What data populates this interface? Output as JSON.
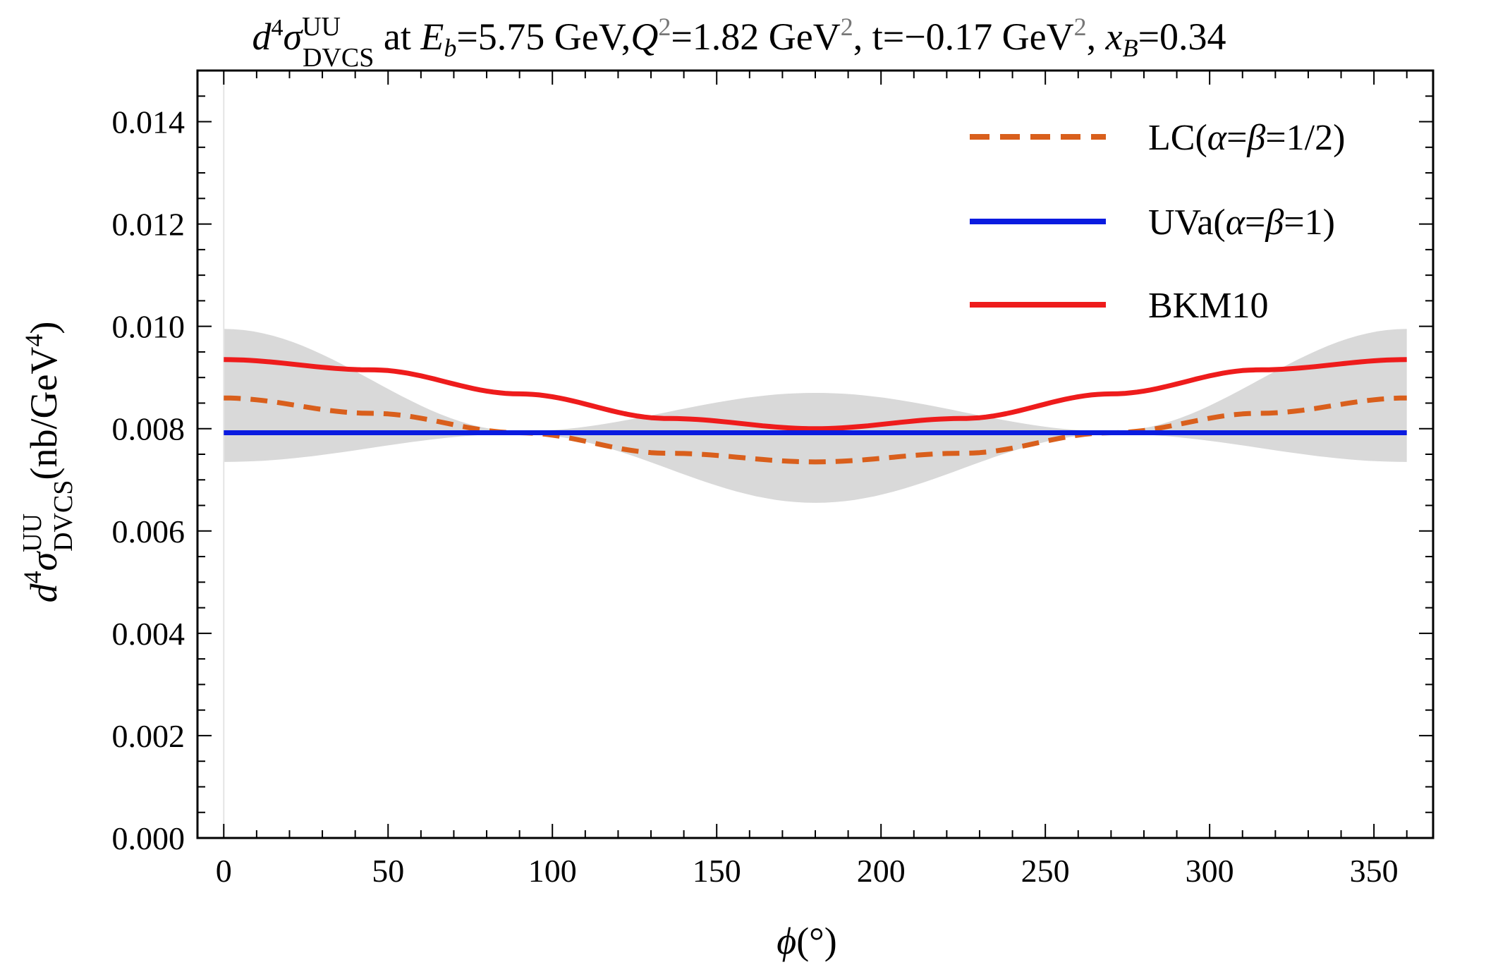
{
  "chart_data": {
    "type": "line",
    "title": {
      "sym": "d",
      "sup1": "4",
      "sigma": "σ",
      "uu": "UU",
      "dvcs": "DVCS",
      "at": " at ",
      "E": "E",
      "b": "b",
      "eb_val": "=5.75 GeV,",
      "Q": "Q",
      "two_a": "2",
      "q2_val": "=1.82 GeV",
      "two_b": "2",
      "t_val": ", t=−0.17 GeV",
      "two_c": "2",
      "comma": ", ",
      "x": "x",
      "B": "B",
      "xb_val": "=0.34"
    },
    "xlabel": {
      "phi": "ϕ",
      "unit": "(°)"
    },
    "ylabel": {
      "d": "d",
      "sup4": "4",
      "sigma": "σ",
      "uu": "UU",
      "dvcs": "DVCS",
      "unit_a": "(nb/GeV",
      "unit_sup": "4",
      "unit_b": ")"
    },
    "xlim": [
      -8,
      368
    ],
    "ylim": [
      0,
      0.015
    ],
    "xticks": [
      0,
      50,
      100,
      150,
      200,
      250,
      300,
      350
    ],
    "xtick_labels": [
      "0",
      "50",
      "100",
      "150",
      "200",
      "250",
      "300",
      "350"
    ],
    "yticks": [
      0,
      0.002,
      0.004,
      0.006,
      0.008,
      0.01,
      0.012,
      0.014
    ],
    "ytick_labels": [
      "0.000",
      "0.002",
      "0.004",
      "0.006",
      "0.008",
      "0.010",
      "0.012",
      "0.014"
    ],
    "grid": false,
    "legend_position": "top-right",
    "band": {
      "name": "uncertainty band",
      "color": "#d9d9d9",
      "x": [
        0,
        90,
        180,
        270,
        360
      ],
      "upper": [
        0.00995,
        0.00795,
        0.0087,
        0.00795,
        0.00995
      ],
      "lower": [
        0.00735,
        0.0079,
        0.00655,
        0.0079,
        0.00735
      ]
    },
    "series": [
      {
        "name": "BKM10",
        "color": "#ee1c1c",
        "style": "solid",
        "x": [
          0,
          45,
          90,
          135,
          180,
          225,
          270,
          315,
          360
        ],
        "values": [
          0.00935,
          0.00915,
          0.00868,
          0.0082,
          0.008,
          0.0082,
          0.00868,
          0.00915,
          0.00935
        ]
      },
      {
        "name": "LC",
        "color": "#d95f1c",
        "style": "dashed",
        "x": [
          0,
          45,
          90,
          135,
          180,
          225,
          270,
          315,
          360
        ],
        "values": [
          0.0086,
          0.0083,
          0.00792,
          0.00752,
          0.00735,
          0.00752,
          0.00792,
          0.0083,
          0.0086
        ]
      },
      {
        "name": "UVa",
        "color": "#0a1be0",
        "style": "solid",
        "x": [
          0,
          360
        ],
        "values": [
          0.00792,
          0.00792
        ]
      }
    ],
    "legend": [
      {
        "key": "lc",
        "style": "dashed",
        "color": "#d95f1c",
        "label_a": "LC(",
        "alpha": "α",
        "eq1": "=",
        "beta": "β",
        "label_b": "=1/2)"
      },
      {
        "key": "uva",
        "style": "solid",
        "color": "#0a1be0",
        "label_a": "UVa(",
        "alpha": "α",
        "eq1": "=",
        "beta": "β",
        "label_b": "=1)"
      },
      {
        "key": "bkm",
        "style": "solid",
        "color": "#ee1c1c",
        "label_a": "BKM10",
        "alpha": "",
        "eq1": "",
        "beta": "",
        "label_b": ""
      }
    ]
  }
}
